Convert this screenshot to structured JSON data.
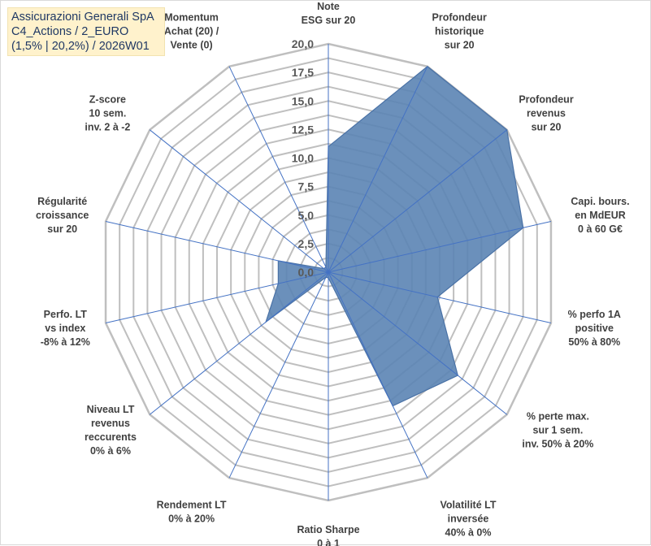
{
  "title_lines": [
    "Assicurazioni Generali SpA",
    "C4_Actions / 2_EURO",
    "(1,5% | 20,2%) / 2026W01"
  ],
  "chart_data": {
    "type": "radar",
    "title": "Assicurazioni Generali SpA C4_Actions / 2_EURO (1,5% | 20,2%) / 2026W01",
    "rlim": [
      0,
      20
    ],
    "r_ticks": [
      0,
      2.5,
      5,
      7.5,
      10,
      12.5,
      15,
      17.5,
      20
    ],
    "r_tick_labels": [
      "0,0",
      "2,5",
      "5,0",
      "7,5",
      "10,0",
      "12,5",
      "15,0",
      "17,5",
      "20,0"
    ],
    "grid": true,
    "categories": [
      [
        "Note",
        "ESG sur 20"
      ],
      [
        "Profondeur",
        "historique",
        "sur 20"
      ],
      [
        "Profondeur",
        "revenus",
        "sur 20"
      ],
      [
        "Capi. bours.",
        "en MdEUR",
        "0 à 60 G€"
      ],
      [
        "% perfo 1A",
        "positive",
        "50% à 80%"
      ],
      [
        "% perte max.",
        "sur 1 sem.",
        "inv. 50% à 20%"
      ],
      [
        "Volatilité LT",
        "inversée",
        "40% à 0%"
      ],
      [
        "Ratio Sharpe",
        "0 à 1"
      ],
      [
        "Rendement LT",
        "0% à 20%"
      ],
      [
        "Niveau LT",
        "revenus",
        "reccurents",
        "0% à 6%"
      ],
      [
        "Perfo. LT",
        "vs index",
        "-8% à 12%"
      ],
      [
        "Régularité",
        "croissance",
        "sur 20"
      ],
      [
        "Z-score",
        "10 sem.",
        "inv. 2 à -2"
      ],
      [
        "Momentum",
        "Achat (20) /",
        "Vente (0)"
      ]
    ],
    "series": [
      {
        "name": "Assicurazioni Generali SpA",
        "values": [
          11,
          20,
          20,
          17.5,
          9.8,
          14.5,
          13,
          0.5,
          0.5,
          7,
          4.5,
          4.5,
          0.5,
          0.5
        ],
        "fill_color": "#5b84b4",
        "line_color": "#4a72a6"
      }
    ],
    "grid_color": "#bfbfbf",
    "spoke_color": "#4472c4"
  }
}
